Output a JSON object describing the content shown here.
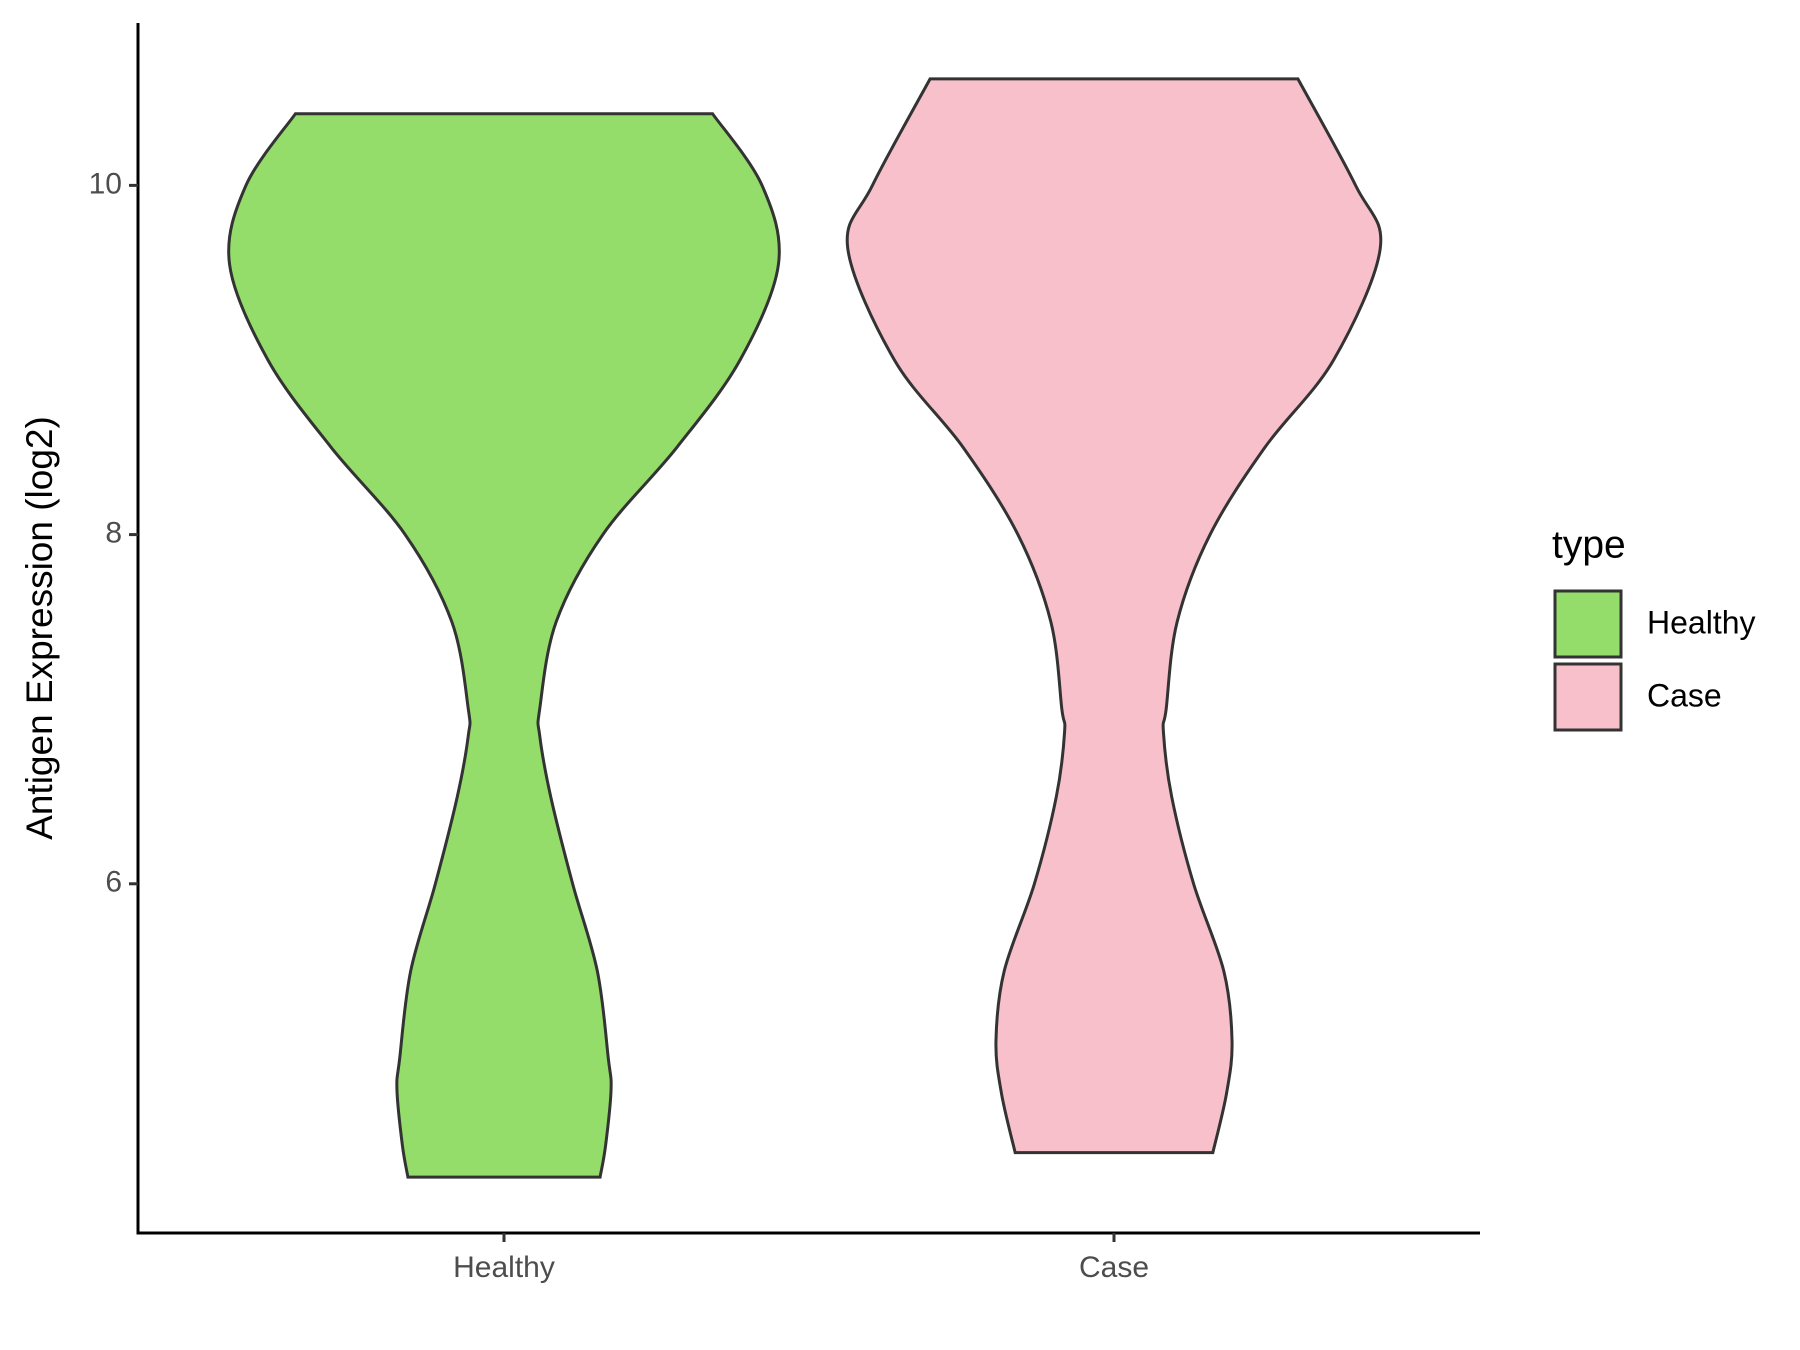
{
  "chart_data": {
    "type": "violin",
    "y_label": "Antigen Expression (log2)",
    "categories": [
      "Healthy",
      "Case"
    ],
    "legend_title": "type",
    "legend_position": "right",
    "ylim": [
      4.0,
      10.93
    ],
    "yticks": [
      6,
      8,
      10
    ],
    "series": [
      {
        "name": "Healthy",
        "color": "#95dd6b",
        "y": [
          10.41,
          10.0,
          9.55,
          9.0,
          8.5,
          8.0,
          7.5,
          7.0,
          6.85,
          6.5,
          6.0,
          5.5,
          5.0,
          4.82,
          4.5,
          4.32
        ],
        "density": [
          0.76,
          0.94,
          1.0,
          0.86,
          0.63,
          0.36,
          0.19,
          0.13,
          0.13,
          0.17,
          0.25,
          0.34,
          0.38,
          0.39,
          0.37,
          0.35
        ]
      },
      {
        "name": "Case",
        "color": "#f7c0cb",
        "y": [
          10.61,
          10.0,
          9.64,
          9.0,
          8.5,
          8.0,
          7.5,
          7.0,
          6.87,
          6.5,
          6.0,
          5.5,
          5.1,
          4.8,
          4.46
        ],
        "density": [
          0.67,
          0.88,
          0.97,
          0.8,
          0.55,
          0.35,
          0.23,
          0.19,
          0.18,
          0.21,
          0.29,
          0.4,
          0.43,
          0.41,
          0.36
        ]
      }
    ]
  }
}
